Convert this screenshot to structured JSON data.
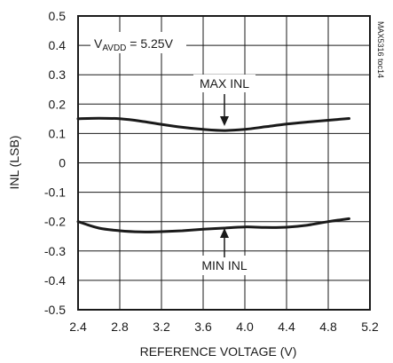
{
  "chart_data": {
    "type": "line",
    "title": "",
    "xlabel": "REFERENCE VOLTAGE (V)",
    "ylabel": "INL (LSB)",
    "xlim": [
      2.4,
      5.2
    ],
    "ylim": [
      -0.5,
      0.5
    ],
    "x_ticks": [
      "2.4",
      "2.8",
      "3.2",
      "3.6",
      "4.0",
      "4.4",
      "4.8",
      "5.2"
    ],
    "y_ticks": [
      "0.5",
      "0.4",
      "0.3",
      "0.2",
      "0.1",
      "0",
      "-0.1",
      "-0.2",
      "-0.3",
      "-0.4",
      "-0.5"
    ],
    "grid": true,
    "legend": "none",
    "condition": {
      "prefix": "V",
      "subscript": "AVDD",
      "suffix": " = 5.25V"
    },
    "side_note": "MAX5316 toc14",
    "series": [
      {
        "name": "MAX INL",
        "x": [
          2.4,
          2.6,
          2.8,
          3.0,
          3.2,
          3.4,
          3.6,
          3.8,
          4.0,
          4.2,
          4.4,
          4.6,
          4.8,
          5.0
        ],
        "y": [
          0.15,
          0.152,
          0.15,
          0.142,
          0.131,
          0.121,
          0.114,
          0.11,
          0.114,
          0.123,
          0.132,
          0.139,
          0.145,
          0.151
        ]
      },
      {
        "name": "MIN INL",
        "x": [
          2.4,
          2.6,
          2.8,
          3.0,
          3.2,
          3.4,
          3.6,
          3.8,
          4.0,
          4.2,
          4.4,
          4.6,
          4.8,
          5.0
        ],
        "y": [
          -0.2,
          -0.222,
          -0.231,
          -0.235,
          -0.234,
          -0.231,
          -0.226,
          -0.222,
          -0.218,
          -0.22,
          -0.219,
          -0.212,
          -0.2,
          -0.19
        ]
      }
    ]
  }
}
